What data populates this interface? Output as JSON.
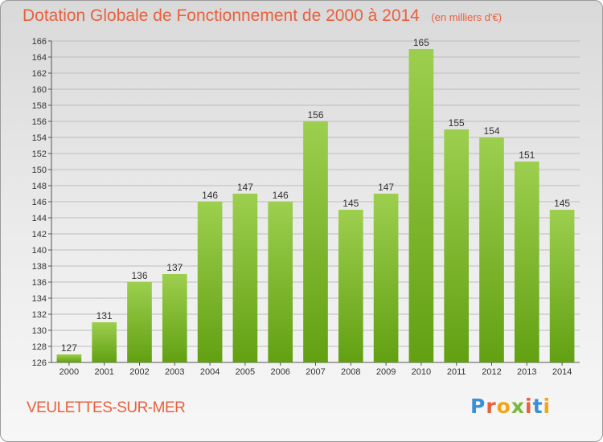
{
  "header": {
    "title": "Dotation Globale de Fonctionnement de 2000 à 2014",
    "unit": "(en milliers d'€)"
  },
  "footer": {
    "place": "VEULETTES-SUR-MER",
    "logo": "Proxiti"
  },
  "colors": {
    "bar_top": "#9ccf4e",
    "bar_bottom": "#62a012",
    "accent": "#e8603c"
  },
  "chart_data": {
    "type": "bar",
    "title": "Dotation Globale de Fonctionnement de 2000 à 2014",
    "subtitle": "(en milliers d'€)",
    "xlabel": "",
    "ylabel": "",
    "categories": [
      "2000",
      "2001",
      "2002",
      "2003",
      "2004",
      "2005",
      "2006",
      "2007",
      "2008",
      "2009",
      "2010",
      "2011",
      "2012",
      "2013",
      "2014"
    ],
    "values": [
      127,
      131,
      136,
      137,
      146,
      147,
      146,
      156,
      145,
      147,
      165,
      155,
      154,
      151,
      145
    ],
    "ylim": [
      126,
      166
    ],
    "yticks": [
      126,
      128,
      130,
      132,
      134,
      136,
      138,
      140,
      142,
      144,
      146,
      148,
      150,
      152,
      154,
      156,
      158,
      160,
      162,
      164,
      166
    ],
    "grid": true,
    "data_labels": true
  }
}
